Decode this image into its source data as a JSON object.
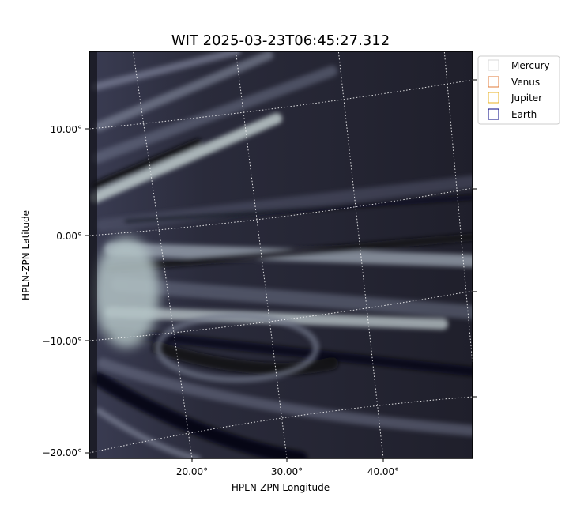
{
  "title": "WIT 2025-03-23T06:45:27.312",
  "x_axis": {
    "label": "HPLN-ZPN Longitude",
    "ticks": [
      "20.00°",
      "30.00°",
      "40.00°"
    ]
  },
  "y_axis": {
    "label": "HPLN-ZPN Latitude",
    "ticks": [
      "10.00°",
      "0.00°",
      "−10.00°",
      "−20.00°"
    ]
  },
  "legend": {
    "entries": [
      "Mercury",
      "Venus",
      "Jupiter",
      "Earth"
    ]
  }
}
